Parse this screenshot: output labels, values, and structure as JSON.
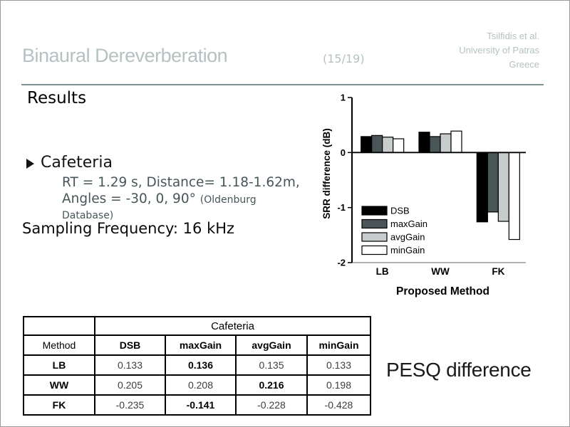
{
  "colors": {
    "header_text": "#b5c2c2",
    "rule": "#7e9191",
    "detail_text": "#465659",
    "table_gray": "#efefef"
  },
  "header": {
    "title": "Binaural Dereverberation",
    "page_indicator": "(15/19)",
    "affiliation": [
      "Tsilfidis et al.",
      "University of Patras",
      "Greece"
    ]
  },
  "section_title": "Results",
  "bullet": {
    "label": "Cafeteria",
    "line1": "RT = 1.29 s, Distance= 1.18-1.62m,",
    "line2": "Angles = -30, 0, 90°",
    "line2_note": "(Oldenburg",
    "line3_note": "Database)"
  },
  "sampling_line": "Sampling Frequency: 16 kHz",
  "pesq_caption": "PESQ difference",
  "chart_data": {
    "type": "bar",
    "categories": [
      "LB",
      "WW",
      "FK"
    ],
    "series": [
      {
        "name": "DSB",
        "color": "#000000",
        "values": [
          0.29,
          0.37,
          -1.26
        ]
      },
      {
        "name": "maxGain",
        "color": "#4a5558",
        "values": [
          0.31,
          0.29,
          -1.08
        ]
      },
      {
        "name": "avgGain",
        "color": "#c7cdcd",
        "values": [
          0.28,
          0.34,
          -1.25
        ]
      },
      {
        "name": "minGain",
        "color": "#ffffff",
        "values": [
          0.25,
          0.39,
          -1.58
        ]
      }
    ],
    "title": "",
    "xlabel": "Proposed Method",
    "ylabel": "SRR difference (dB)",
    "ylim": [
      -2,
      1
    ],
    "yticks": [
      1,
      0,
      -1,
      -2
    ],
    "legend_position": "lower-left",
    "grid": false
  },
  "table": {
    "group_header": "Cafeteria",
    "corner_label": "",
    "method_label": "Method",
    "columns": [
      "DSB",
      "maxGain",
      "avgGain",
      "minGain"
    ],
    "rows": [
      {
        "method": "LB",
        "values": [
          "0.133",
          "0.136",
          "0.135",
          "0.133"
        ],
        "bold_col": 1
      },
      {
        "method": "WW",
        "values": [
          "0.205",
          "0.208",
          "0.216",
          "0.198"
        ],
        "bold_col": 2
      },
      {
        "method": "FK",
        "values": [
          "-0.235",
          "-0.141",
          "-0.228",
          "-0.428"
        ],
        "bold_col": 1
      }
    ]
  }
}
